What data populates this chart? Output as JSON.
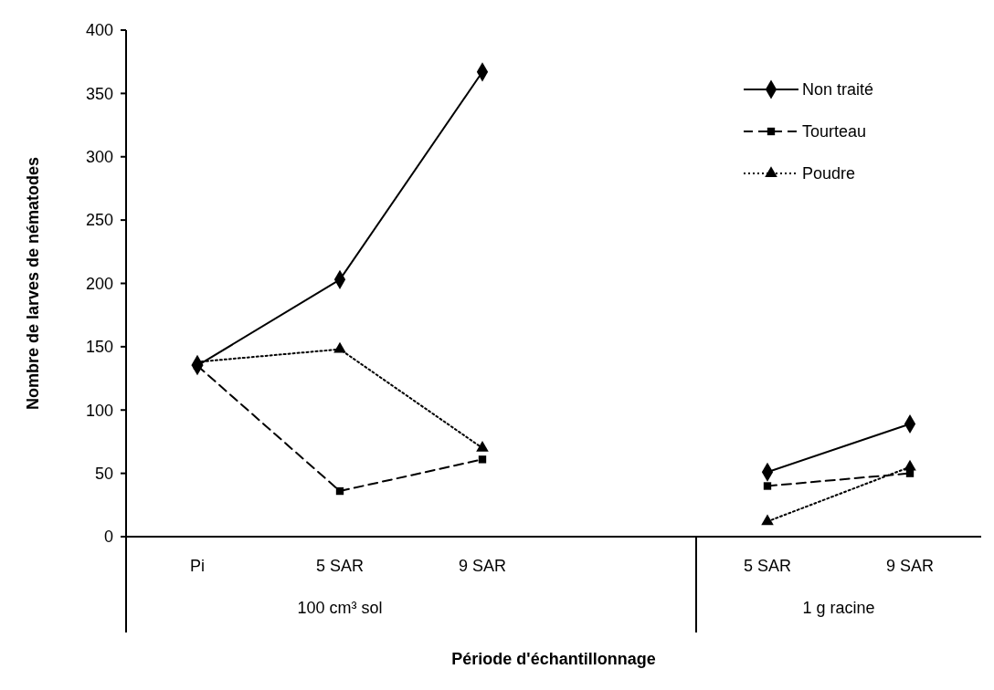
{
  "chart_data": {
    "type": "line",
    "xlabel": "Période d'échantillonnage",
    "ylabel": "Nombre de larves de nématodes",
    "categories": [
      "Pi",
      "5 SAR",
      "9 SAR",
      null,
      "5 SAR",
      "9 SAR"
    ],
    "annotations": [
      "100 cm³ sol",
      "1 g racine"
    ],
    "series": [
      {
        "name": "Non traité",
        "color": "#000000",
        "marker": "diamond",
        "line_style": "solid",
        "values": [
          135,
          203,
          367,
          null,
          51,
          89
        ]
      },
      {
        "name": "Tourteau",
        "color": "#000000",
        "marker": "square",
        "line_style": "dashed",
        "values": [
          135,
          36,
          61,
          null,
          40,
          50
        ]
      },
      {
        "name": "Poudre",
        "color": "#000000",
        "marker": "triangle",
        "line_style": "dotted",
        "values": [
          138,
          148,
          70,
          null,
          12,
          55
        ]
      }
    ],
    "ylim": [
      0,
      400
    ],
    "yticks": [
      0,
      50,
      100,
      150,
      200,
      250,
      300,
      350,
      400
    ],
    "grid": false,
    "legend": "top right"
  }
}
